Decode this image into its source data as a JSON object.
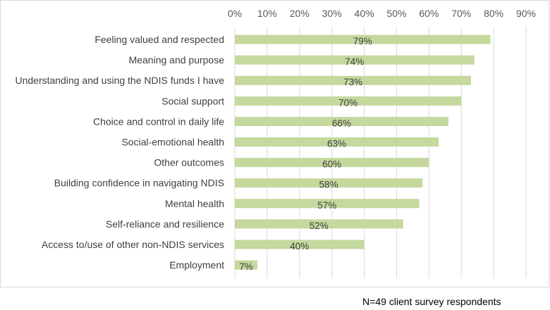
{
  "chart_data": {
    "type": "bar",
    "orientation": "horizontal",
    "categories": [
      "Feeling valued and respected",
      "Meaning and purpose",
      "Understanding and using the NDIS funds I have",
      "Social support",
      "Choice and control in daily life",
      "Social-emotional health",
      "Other outcomes",
      "Building confidence in navigating NDIS",
      "Mental health",
      "Self-reliance and resilience",
      "Access to/use of other non-NDIS services",
      "Employment"
    ],
    "values": [
      79,
      74,
      73,
      70,
      66,
      63,
      60,
      58,
      57,
      52,
      40,
      7
    ],
    "data_labels": [
      "79%",
      "74%",
      "73%",
      "70%",
      "66%",
      "63%",
      "60%",
      "58%",
      "57%",
      "52%",
      "40%",
      "7%"
    ],
    "x_ticks": [
      "0%",
      "10%",
      "20%",
      "30%",
      "40%",
      "50%",
      "60%",
      "70%",
      "80%",
      "90%"
    ],
    "xlim": [
      0,
      90
    ],
    "axis_position": "top",
    "grid": true,
    "bar_color": "#c5d89d",
    "grid_color": "#d9d9d9",
    "title": "",
    "xlabel": "",
    "ylabel": ""
  },
  "footnote": "N=49 client survey respondents"
}
